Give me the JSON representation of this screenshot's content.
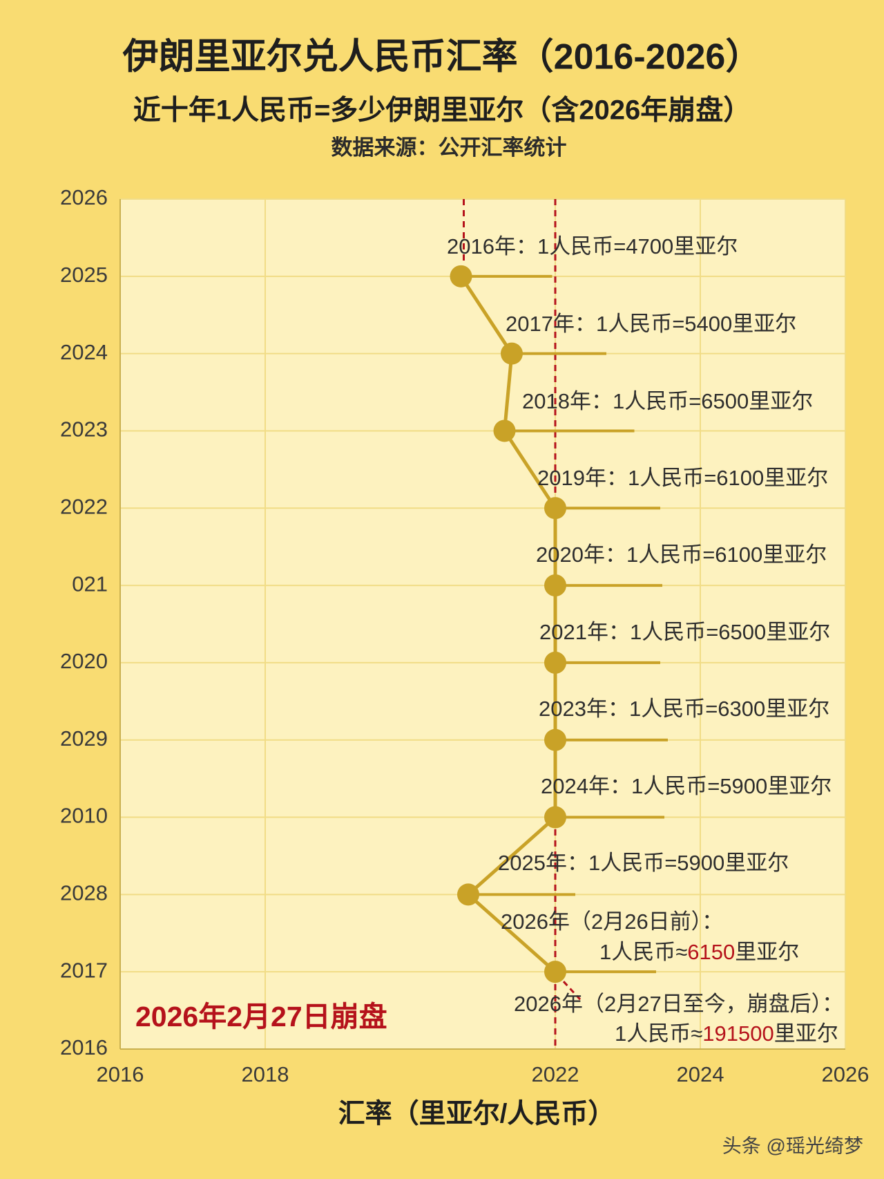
{
  "chart_data": {
    "type": "line",
    "title": "伊朗里亚尔兑人民币汇率（2016-2026）",
    "subtitle": "近十年1人民币=多少伊朗里亚尔（含2026年崩盘）",
    "source": "数据来源：公开汇率统计",
    "x_label": "汇率（里亚尔/人民币）",
    "categories": [
      "2016",
      "2017",
      "2028",
      "2010",
      "2029",
      "2020",
      "021",
      "2022",
      "2023",
      "2024",
      "2025",
      "2026"
    ],
    "values": [
      null,
      2022,
      2020.8,
      2022,
      2022,
      2022,
      2022,
      2022,
      2021.3,
      2021.4,
      2020.7,
      null
    ],
    "color": "#c9a227",
    "xlim": [
      2016,
      2026
    ],
    "xticks": [
      2016,
      2018,
      2022,
      2024,
      2026
    ],
    "grid": true,
    "crash_line": {
      "x": 2022,
      "label": "2026年2月27日崩盘",
      "color": "#b5121b"
    },
    "annotations": [
      "2016年：1人民币=4700里亚尔",
      "2017年：1人民币=5400里亚尔",
      "2018年：1人民币=6500里亚尔",
      "2019年：1人民币=6100里亚尔",
      "2020年：1人民币=6100里亚尔",
      "2021年：1人民币=6500里亚尔",
      "2023年：1人民币=6300里亚尔",
      "2024年：1人民币=5900里亚尔",
      "2025年：1人民币=5900里亚尔"
    ],
    "notes": [
      {
        "head": "2026年（2月26日前）：",
        "prefix": "1人民币≈",
        "highlight": "6150",
        "suffix": "里亚尔"
      },
      {
        "head": "2026年（2月27日至今，崩盘后）：",
        "prefix": "1人民币≈",
        "highlight": "191500",
        "suffix": "里亚尔"
      }
    ],
    "watermark": "头条 @瑶光绮梦"
  }
}
